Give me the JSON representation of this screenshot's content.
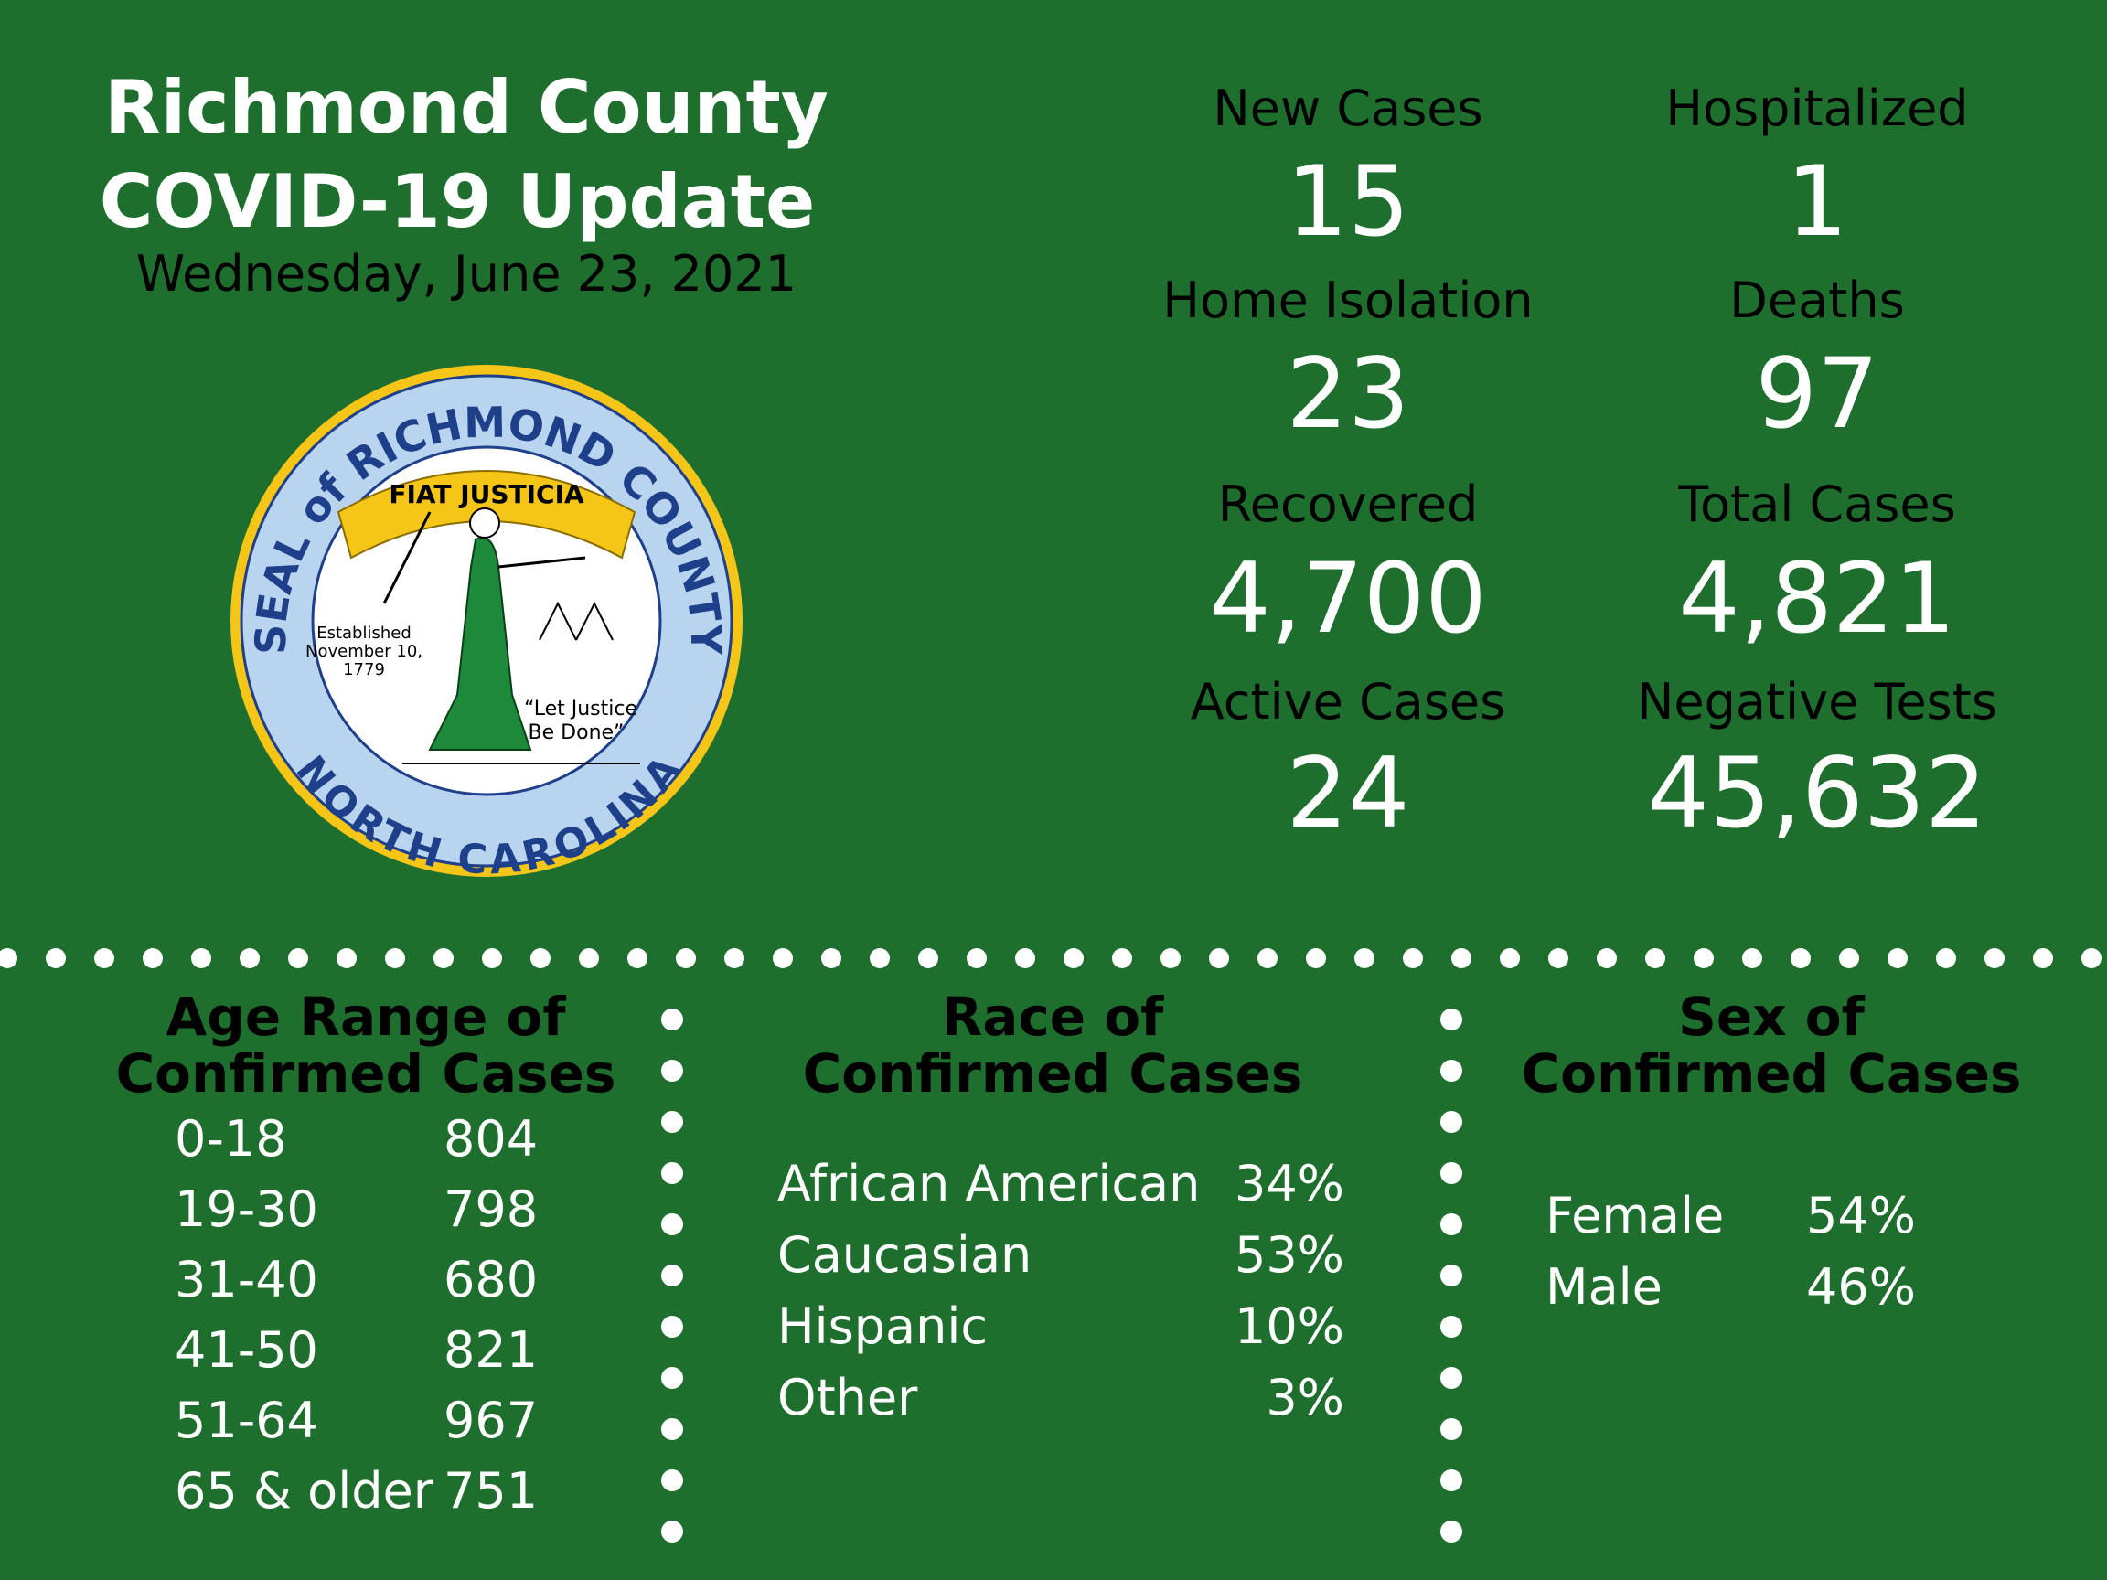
{
  "header": {
    "title": [
      "Richmond County",
      "COVID-19 Update"
    ],
    "date": "Wednesday, June 23, 2021"
  },
  "seal": {
    "top_text": "SEAL of RICHMOND COUNTY",
    "motto": "FIAT JUSTICIA",
    "established": [
      "Established",
      "November 10,",
      "1779"
    ],
    "quote": [
      "“Let Justice",
      "Be Done”"
    ],
    "bottom_text": "NORTH CAROLINA"
  },
  "stats": [
    {
      "label": "New Cases",
      "value": "15"
    },
    {
      "label": "Hospitalized",
      "value": "1"
    },
    {
      "label": "Home Isolation",
      "value": "23"
    },
    {
      "label": "Deaths",
      "value": "97"
    },
    {
      "label": "Recovered",
      "value": "4,700"
    },
    {
      "label": "Total Cases",
      "value": "4,821"
    },
    {
      "label": "Active Cases",
      "value": "24"
    },
    {
      "label": "Negative Tests",
      "value": "45,632"
    }
  ],
  "age": {
    "title": [
      "Age Range of",
      "Confirmed Cases"
    ],
    "rows": [
      [
        "0-18",
        "804"
      ],
      [
        "19-30",
        "798"
      ],
      [
        "31-40",
        "680"
      ],
      [
        "41-50",
        "821"
      ],
      [
        "51-64",
        "967"
      ],
      [
        "65 & older",
        "751"
      ]
    ]
  },
  "race": {
    "title": [
      "Race of",
      "Confirmed Cases"
    ],
    "rows": [
      [
        "African American",
        "34%"
      ],
      [
        "Caucasian",
        "53%"
      ],
      [
        "Hispanic",
        "10%"
      ],
      [
        "Other",
        "3%"
      ]
    ]
  },
  "sex": {
    "title": [
      "Sex of",
      "Confirmed Cases"
    ],
    "rows": [
      [
        "Female",
        "54%"
      ],
      [
        "Male",
        "46%"
      ]
    ]
  }
}
